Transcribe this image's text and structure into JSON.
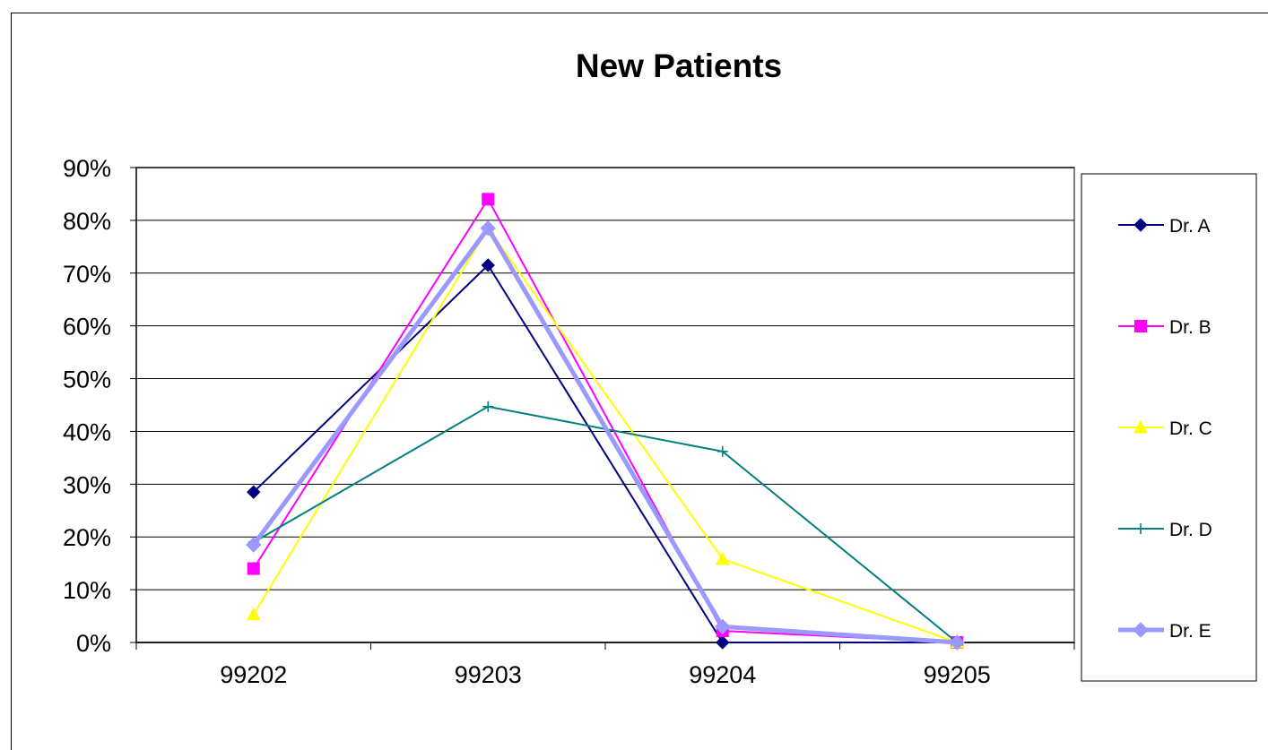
{
  "chart_data": {
    "type": "line",
    "title": "New Patients",
    "xlabel": "",
    "ylabel": "",
    "categories": [
      "99202",
      "99203",
      "99204",
      "99205"
    ],
    "ylim": [
      0,
      0.9
    ],
    "yticks": [
      0,
      0.1,
      0.2,
      0.3,
      0.4,
      0.5,
      0.6,
      0.7,
      0.8,
      0.9
    ],
    "ytick_labels": [
      "0%",
      "10%",
      "20%",
      "30%",
      "40%",
      "50%",
      "60%",
      "70%",
      "80%",
      "90%"
    ],
    "grid": true,
    "legend_position": "right",
    "series": [
      {
        "name": "Dr. A",
        "values": [
          0.285,
          0.715,
          0.0,
          0.0
        ],
        "color": "#000080",
        "marker": "diamond"
      },
      {
        "name": "Dr. B",
        "values": [
          0.14,
          0.84,
          0.022,
          0.0
        ],
        "color": "#ff00ff",
        "marker": "square"
      },
      {
        "name": "Dr. C",
        "values": [
          0.053,
          0.785,
          0.158,
          0.0
        ],
        "color": "#ffff00",
        "marker": "triangle"
      },
      {
        "name": "Dr. D",
        "values": [
          0.19,
          0.447,
          0.362,
          0.0
        ],
        "color": "#008080",
        "marker": "plus"
      },
      {
        "name": "Dr. E",
        "values": [
          0.185,
          0.785,
          0.03,
          0.0
        ],
        "color": "#9999ff",
        "marker": "diamond"
      }
    ]
  }
}
